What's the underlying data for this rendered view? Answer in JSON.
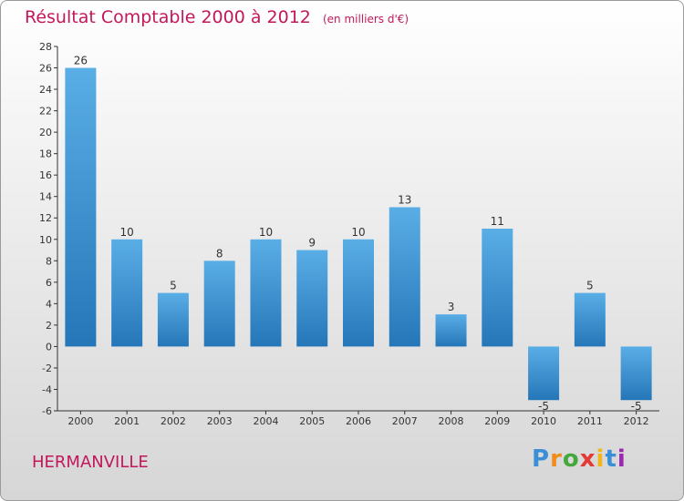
{
  "header": {
    "title": "Résultat Comptable 2000 à 2012",
    "subtitle": "(en milliers d'€)"
  },
  "footer": {
    "commune": "HERMANVILLE",
    "logo_letters": [
      "P",
      "r",
      "o",
      "x",
      "i",
      "t",
      "i"
    ]
  },
  "colors": {
    "bar_light": "#5aaee6",
    "bar_dark": "#2576b8",
    "title": "#c2185b",
    "axis": "#333333"
  },
  "chart_data": {
    "type": "bar",
    "title": "Résultat Comptable 2000 à 2012",
    "categories": [
      "2000",
      "2001",
      "2002",
      "2003",
      "2004",
      "2005",
      "2006",
      "2007",
      "2008",
      "2009",
      "2010",
      "2011",
      "2012"
    ],
    "values": [
      26,
      10,
      5,
      8,
      10,
      9,
      10,
      13,
      3,
      11,
      -5,
      5,
      -5
    ],
    "ylim": [
      -6,
      28
    ],
    "yticks": [
      -6,
      -4,
      -2,
      0,
      2,
      4,
      6,
      8,
      10,
      12,
      14,
      16,
      18,
      20,
      22,
      24,
      26,
      28
    ],
    "grid": false,
    "data_labels": true
  }
}
